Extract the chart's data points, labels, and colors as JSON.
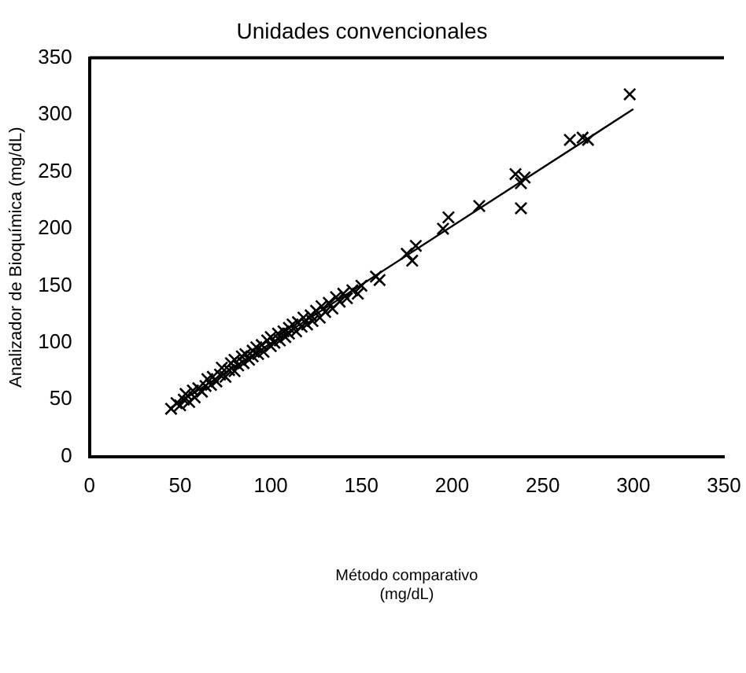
{
  "chart_data": {
    "type": "scatter",
    "title": "Unidades convencionales",
    "xlabel": "Método comparativo\n(mg/dL)",
    "ylabel": "Analizador de Bioquímica (mg/dL)",
    "xlim": [
      0,
      350
    ],
    "xticks": [
      0,
      50,
      100,
      150,
      200,
      250,
      300,
      350
    ],
    "ylim": [
      0,
      350
    ],
    "yticks": [
      0,
      50,
      100,
      150,
      200,
      250,
      300,
      350
    ],
    "grid": false,
    "legend": false,
    "marker": "cross",
    "series": [
      {
        "color": "#000000",
        "x": [
          45,
          48,
          50,
          52,
          53,
          55,
          57,
          58,
          60,
          62,
          64,
          65,
          67,
          68,
          70,
          72,
          73,
          75,
          77,
          78,
          80,
          80,
          82,
          84,
          85,
          86,
          88,
          90,
          90,
          92,
          93,
          95,
          96,
          98,
          100,
          100,
          102,
          104,
          105,
          107,
          108,
          110,
          110,
          112,
          114,
          115,
          117,
          118,
          120,
          122,
          123,
          125,
          127,
          128,
          130,
          132,
          134,
          136,
          138,
          140,
          142,
          145,
          148,
          150,
          158,
          160,
          175,
          178,
          180,
          195,
          198,
          215,
          235,
          238,
          240,
          238,
          265,
          272,
          275,
          298
        ],
        "values": [
          42,
          47,
          45,
          50,
          55,
          48,
          58,
          52,
          60,
          57,
          62,
          68,
          63,
          70,
          66,
          72,
          78,
          70,
          76,
          82,
          75,
          85,
          80,
          88,
          82,
          90,
          85,
          93,
          88,
          96,
          90,
          98,
          92,
          102,
          97,
          105,
          100,
          108,
          102,
          110,
          105,
          113,
          108,
          116,
          110,
          118,
          114,
          122,
          116,
          124,
          119,
          128,
          122,
          132,
          127,
          135,
          130,
          140,
          136,
          143,
          139,
          146,
          143,
          150,
          158,
          155,
          178,
          172,
          185,
          200,
          210,
          220,
          248,
          240,
          245,
          218,
          278,
          280,
          278,
          318
        ]
      },
      {
        "type": "line",
        "color": "#000000",
        "x": [
          45,
          300
        ],
        "values": [
          43,
          305
        ],
        "marker": "none"
      }
    ]
  }
}
